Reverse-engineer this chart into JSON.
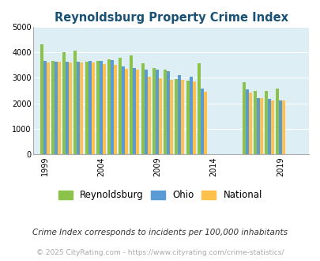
{
  "title": "Reynoldsburg Property Crime Index",
  "subtitle": "Crime Index corresponds to incidents per 100,000 inhabitants",
  "copyright": "© 2025 CityRating.com - https://www.cityrating.com/crime-statistics/",
  "ylim": [
    0,
    5000
  ],
  "yticks": [
    0,
    1000,
    2000,
    3000,
    4000,
    5000
  ],
  "background_color": "#ddeef5",
  "years": [
    1999,
    2000,
    2001,
    2002,
    2003,
    2004,
    2005,
    2006,
    2007,
    2008,
    2009,
    2010,
    2011,
    2012,
    2013,
    2016,
    2017,
    2018,
    2019,
    2020
  ],
  "reynoldsburg": [
    4310,
    3680,
    4010,
    4080,
    3640,
    3680,
    3730,
    3780,
    3880,
    3560,
    3380,
    3320,
    2960,
    2880,
    3570,
    2830,
    2480,
    2500,
    2590,
    null
  ],
  "ohio": [
    3670,
    3630,
    3620,
    3620,
    3660,
    3660,
    3700,
    3450,
    3390,
    3330,
    3310,
    3270,
    3110,
    3060,
    2580,
    2550,
    2200,
    2180,
    2110,
    null
  ],
  "national": [
    3590,
    3620,
    3610,
    3600,
    3590,
    3530,
    3500,
    3360,
    3320,
    3050,
    2980,
    2920,
    2920,
    2870,
    2460,
    2440,
    2200,
    2120,
    2100,
    null
  ],
  "colors": {
    "reynoldsburg": "#8bc34a",
    "ohio": "#5b9bd5",
    "national": "#ffc04c"
  },
  "legend_labels": [
    "Reynoldsburg",
    "Ohio",
    "National"
  ],
  "title_color": "#1a5276",
  "title_fontsize": 10.5,
  "xtick_labels": [
    "1999",
    "2004",
    "2009",
    "2014",
    "2019"
  ],
  "xtick_year_positions": [
    1999,
    2004,
    2009,
    2014,
    2019
  ]
}
